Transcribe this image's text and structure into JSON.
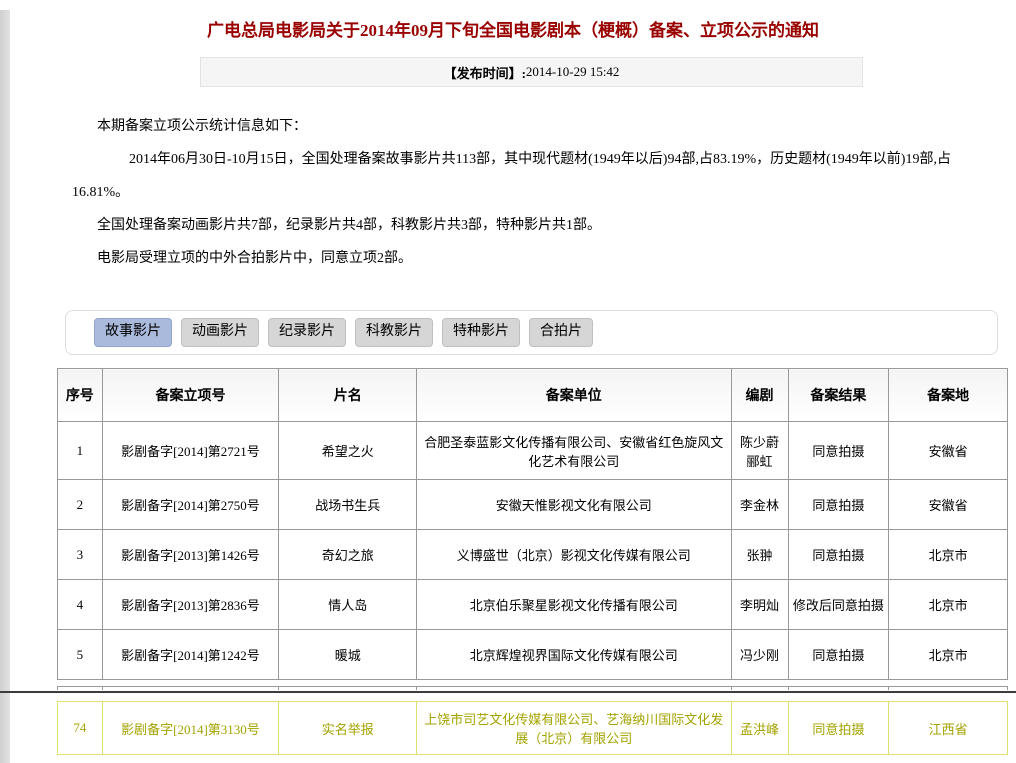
{
  "page": {
    "title": "广电总局电影局关于2014年09月下旬全国电影剧本（梗概）备案、立项公示的通知",
    "publish_time_label": "【发布时间】:",
    "publish_time_value": "2014-10-29 15:42"
  },
  "intro": {
    "p1": "本期备案立项公示统计信息如下：",
    "p2": "2014年06月30日-10月15日，全国处理备案故事影片共113部，其中现代题材(1949年以后)94部,占83.19%，历史题材(1949年以前)19部,占16.81%。",
    "p3": "全国处理备案动画影片共7部，纪录影片共4部，科教影片共3部，特种影片共1部。",
    "p4": "电影局受理立项的中外合拍影片中，同意立项2部。"
  },
  "tabs": [
    {
      "name": "story-film",
      "label": "故事影片",
      "active": true
    },
    {
      "name": "animation-film",
      "label": "动画影片",
      "active": false
    },
    {
      "name": "documentary-film",
      "label": "纪录影片",
      "active": false
    },
    {
      "name": "science-education-film",
      "label": "科教影片",
      "active": false
    },
    {
      "name": "special-film",
      "label": "特种影片",
      "active": false
    },
    {
      "name": "coproduction-film",
      "label": "合拍片",
      "active": false
    }
  ],
  "table": {
    "headers": [
      "序号",
      "备案立项号",
      "片名",
      "备案单位",
      "编剧",
      "备案结果",
      "备案地"
    ],
    "rows": [
      [
        "1",
        "影剧备字[2014]第2721号",
        "希望之火",
        "合肥圣泰蓝影文化传播有限公司、安徽省红色旋风文化艺术有限公司",
        "陈少蔚 郦虹",
        "同意拍摄",
        "安徽省"
      ],
      [
        "2",
        "影剧备字[2014]第2750号",
        "战场书生兵",
        "安徽天惟影视文化有限公司",
        "李金林",
        "同意拍摄",
        "安徽省"
      ],
      [
        "3",
        "影剧备字[2013]第1426号",
        "奇幻之旅",
        "义博盛世（北京）影视文化传媒有限公司",
        "张翀",
        "同意拍摄",
        "北京市"
      ],
      [
        "4",
        "影剧备字[2013]第2836号",
        "情人岛",
        "北京伯乐聚星影视文化传播有限公司",
        "李明灿",
        "修改后同意拍摄",
        "北京市"
      ],
      [
        "5",
        "影剧备字[2014]第1242号",
        "暖城",
        "北京辉煌视界国际文化传媒有限公司",
        "冯少刚",
        "同意拍摄",
        "北京市"
      ]
    ],
    "highlight_row": [
      "74",
      "影剧备字[2014]第3130号",
      "实名举报",
      "上饶市司艺文化传媒有限公司、艺海纳川国际文化发展（北京）有限公司",
      "孟洪峰",
      "同意拍摄",
      "江西省"
    ]
  },
  "colors": {
    "title_red": "#990000",
    "tab_active_bg": "#a9badc",
    "tab_bg": "#d6d6d6",
    "table_border": "#999999",
    "hl_text": "#a3a300",
    "hl_border": "#e0e06a"
  }
}
